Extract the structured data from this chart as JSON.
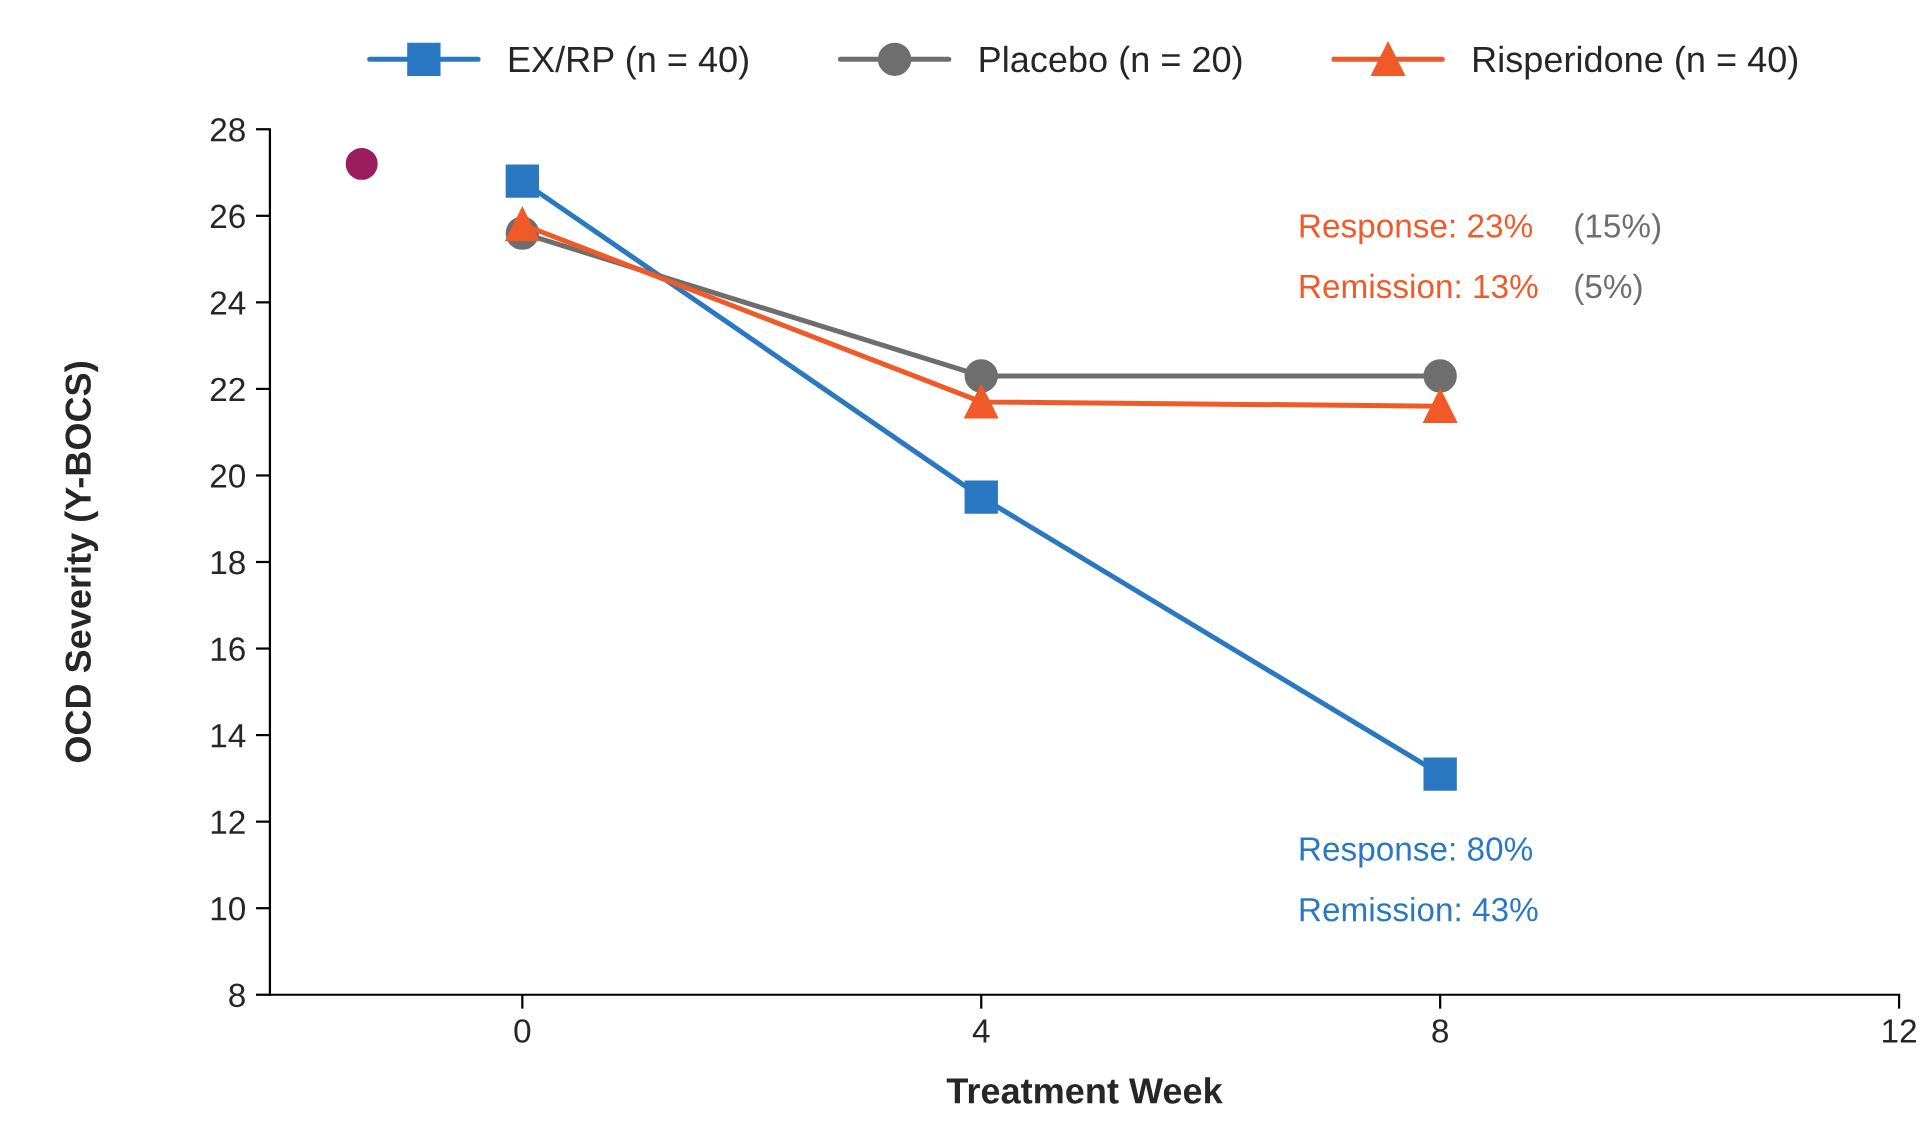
{
  "chart_data": {
    "type": "line",
    "xlabel": "Treatment Week",
    "ylabel": "OCD Severity (Y-BOCS)",
    "x": [
      0,
      4,
      8
    ],
    "series": [
      {
        "name": "EX/RP (n = 40)",
        "color": "#2a78c2",
        "marker": "square",
        "values": [
          26.8,
          19.5,
          13.1
        ]
      },
      {
        "name": "Placebo (n = 20)",
        "color": "#6e6e6e",
        "marker": "circle",
        "values": [
          25.6,
          22.3,
          22.3
        ]
      },
      {
        "name": "Risperidone (n = 40)",
        "color": "#f05a28",
        "marker": "triangle",
        "values": [
          25.8,
          21.7,
          21.6
        ]
      },
      {
        "type": "scatter",
        "color": "#9b1d5e",
        "marker": "circle",
        "x": [
          -1.4
        ],
        "values": [
          27.2
        ]
      }
    ],
    "xlim": [
      -2.2,
      12
    ],
    "xticks": [
      0,
      4,
      8,
      12
    ],
    "ylim": [
      8,
      28
    ],
    "yticks": [
      8,
      10,
      12,
      14,
      16,
      18,
      20,
      22,
      24,
      26,
      28
    ],
    "grid": false,
    "legend": "top",
    "annotations": [
      "Response: 23%",
      "(15%)",
      "Remission: 13%",
      "(5%)",
      "Response: 80%",
      "Remission: 43%"
    ]
  }
}
